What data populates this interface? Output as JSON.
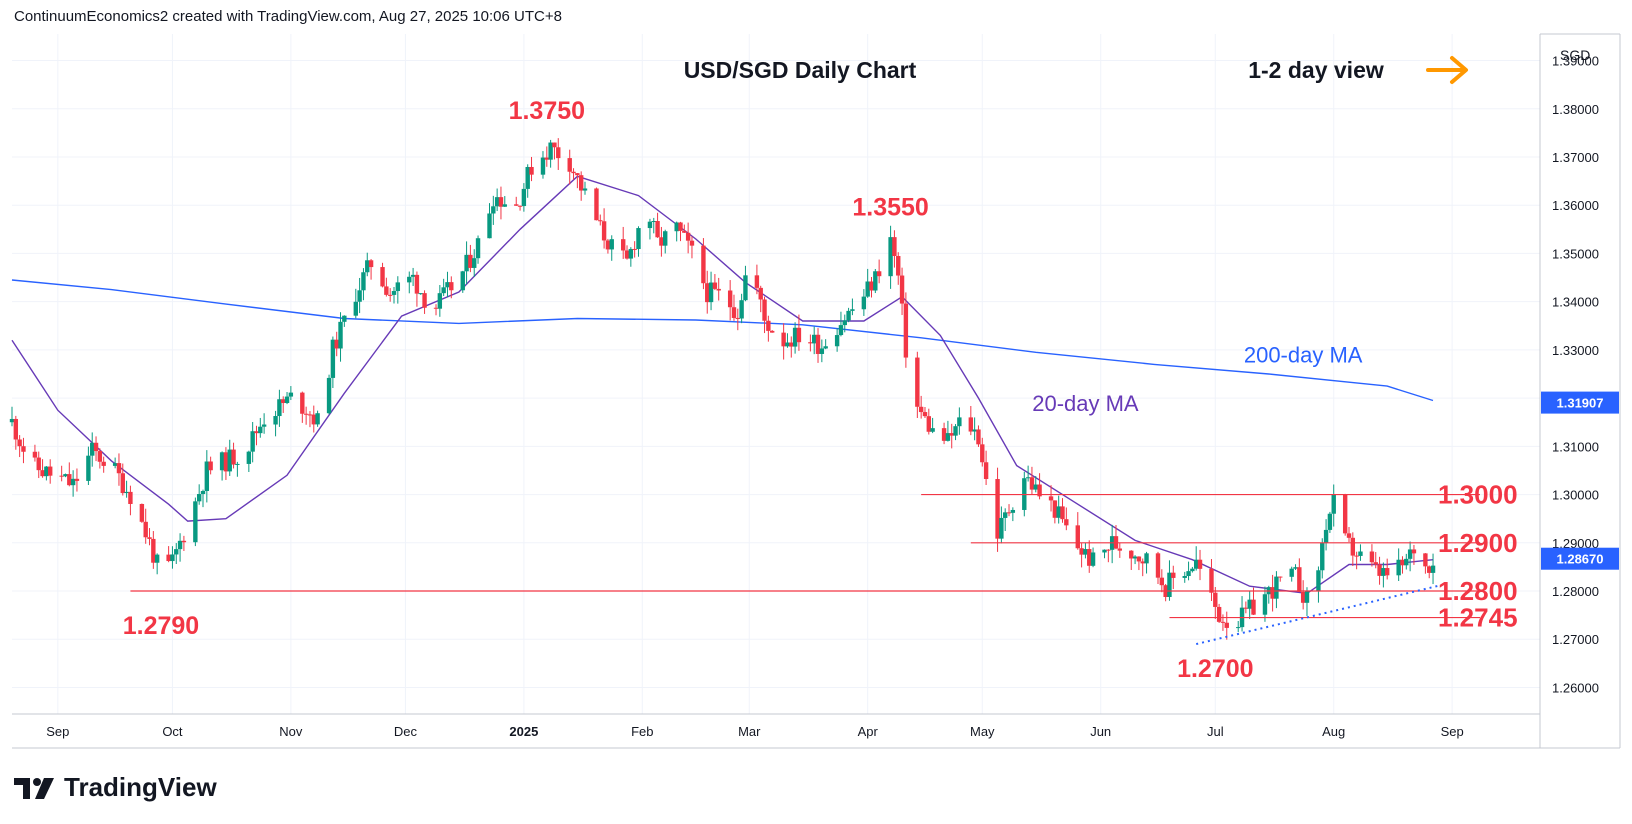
{
  "header": {
    "credit": "ContinuumEconomics2 created with TradingView.com, Aug 27, 2025 10:06 UTC+8"
  },
  "brand": {
    "name": "TradingView"
  },
  "chart_data": {
    "type": "candlestick",
    "title": "USD/SGD Daily Chart",
    "view_label": "1-2 day view",
    "view_arrow": "right-arrow-icon",
    "currency": "SGD",
    "y_axis": {
      "range": [
        1.2545,
        1.3955
      ],
      "ticks": [
        "1.39000",
        "1.38000",
        "1.37000",
        "1.36000",
        "1.35000",
        "1.34000",
        "1.33000",
        "1.32000",
        "1.31000",
        "1.30000",
        "1.29000",
        "1.28000",
        "1.27000",
        "1.26000"
      ],
      "tick_values": [
        1.39,
        1.38,
        1.37,
        1.36,
        1.35,
        1.34,
        1.33,
        1.32,
        1.31,
        1.3,
        1.29,
        1.28,
        1.27,
        1.26
      ]
    },
    "x_axis": {
      "range": [
        "2024-08-20",
        "2025-09-24"
      ],
      "labels": [
        {
          "text": "Sep",
          "date": "2024-09-01",
          "bold": false
        },
        {
          "text": "Oct",
          "date": "2024-10-01",
          "bold": false
        },
        {
          "text": "Nov",
          "date": "2024-11-01",
          "bold": false
        },
        {
          "text": "Dec",
          "date": "2024-12-01",
          "bold": false
        },
        {
          "text": "2025",
          "date": "2025-01-01",
          "bold": true
        },
        {
          "text": "Feb",
          "date": "2025-02-01",
          "bold": false
        },
        {
          "text": "Mar",
          "date": "2025-03-01",
          "bold": false
        },
        {
          "text": "Apr",
          "date": "2025-04-01",
          "bold": false
        },
        {
          "text": "May",
          "date": "2025-05-01",
          "bold": false
        },
        {
          "text": "Jun",
          "date": "2025-06-01",
          "bold": false
        },
        {
          "text": "Jul",
          "date": "2025-07-01",
          "bold": false
        },
        {
          "text": "Aug",
          "date": "2025-08-01",
          "bold": false
        },
        {
          "text": "Sep",
          "date": "2025-09-01",
          "bold": false
        }
      ]
    },
    "price_path": [
      [
        "2024-08-20",
        1.315
      ],
      [
        "2024-08-25",
        1.306
      ],
      [
        "2024-09-05",
        1.302
      ],
      [
        "2024-09-10",
        1.309
      ],
      [
        "2024-09-15",
        1.306
      ],
      [
        "2024-09-20",
        1.3
      ],
      [
        "2024-09-25",
        1.29
      ],
      [
        "2024-09-28",
        1.283
      ],
      [
        "2024-10-01",
        1.286
      ],
      [
        "2024-10-05",
        1.294
      ],
      [
        "2024-10-10",
        1.305
      ],
      [
        "2024-10-20",
        1.309
      ],
      [
        "2024-10-25",
        1.316
      ],
      [
        "2024-11-01",
        1.32
      ],
      [
        "2024-11-05",
        1.318
      ],
      [
        "2024-11-08",
        1.315
      ],
      [
        "2024-11-12",
        1.33
      ],
      [
        "2024-11-18",
        1.342
      ],
      [
        "2024-11-22",
        1.348
      ],
      [
        "2024-11-27",
        1.342
      ],
      [
        "2024-12-03",
        1.345
      ],
      [
        "2024-12-08",
        1.338
      ],
      [
        "2024-12-12",
        1.342
      ],
      [
        "2024-12-16",
        1.346
      ],
      [
        "2024-12-20",
        1.352
      ],
      [
        "2024-12-24",
        1.362
      ],
      [
        "2024-12-30",
        1.36
      ],
      [
        "2025-01-03",
        1.368
      ],
      [
        "2025-01-08",
        1.372
      ],
      [
        "2025-01-13",
        1.369
      ],
      [
        "2025-01-17",
        1.362
      ],
      [
        "2025-01-21",
        1.355
      ],
      [
        "2025-01-25",
        1.35
      ],
      [
        "2025-01-28",
        1.348
      ],
      [
        "2025-02-02",
        1.36
      ],
      [
        "2025-02-05",
        1.352
      ],
      [
        "2025-02-10",
        1.355
      ],
      [
        "2025-02-14",
        1.35
      ],
      [
        "2025-02-18",
        1.342
      ],
      [
        "2025-02-22",
        1.341
      ],
      [
        "2025-02-26",
        1.338
      ],
      [
        "2025-03-01",
        1.349
      ],
      [
        "2025-03-05",
        1.336
      ],
      [
        "2025-03-10",
        1.332
      ],
      [
        "2025-03-14",
        1.333
      ],
      [
        "2025-03-20",
        1.331
      ],
      [
        "2025-03-25",
        1.336
      ],
      [
        "2025-03-30",
        1.34
      ],
      [
        "2025-04-03",
        1.345
      ],
      [
        "2025-04-07",
        1.353
      ],
      [
        "2025-04-09",
        1.345
      ],
      [
        "2025-04-11",
        1.33
      ],
      [
        "2025-04-14",
        1.318
      ],
      [
        "2025-04-18",
        1.313
      ],
      [
        "2025-04-22",
        1.311
      ],
      [
        "2025-04-26",
        1.316
      ],
      [
        "2025-04-30",
        1.312
      ],
      [
        "2025-05-02",
        1.303
      ],
      [
        "2025-05-05",
        1.292
      ],
      [
        "2025-05-08",
        1.297
      ],
      [
        "2025-05-12",
        1.304
      ],
      [
        "2025-05-16",
        1.3
      ],
      [
        "2025-05-20",
        1.297
      ],
      [
        "2025-05-25",
        1.29
      ],
      [
        "2025-05-30",
        1.286
      ],
      [
        "2025-06-04",
        1.29
      ],
      [
        "2025-06-10",
        1.288
      ],
      [
        "2025-06-14",
        1.286
      ],
      [
        "2025-06-18",
        1.281
      ],
      [
        "2025-06-22",
        1.284
      ],
      [
        "2025-06-26",
        1.286
      ],
      [
        "2025-06-29",
        1.28
      ],
      [
        "2025-07-02",
        1.275
      ],
      [
        "2025-07-06",
        1.273
      ],
      [
        "2025-07-10",
        1.276
      ],
      [
        "2025-07-14",
        1.279
      ],
      [
        "2025-07-18",
        1.282
      ],
      [
        "2025-07-22",
        1.283
      ],
      [
        "2025-07-25",
        1.278
      ],
      [
        "2025-07-28",
        1.285
      ],
      [
        "2025-07-30",
        1.294
      ],
      [
        "2025-08-01",
        1.298
      ],
      [
        "2025-08-04",
        1.29
      ],
      [
        "2025-08-08",
        1.287
      ],
      [
        "2025-08-12",
        1.284
      ],
      [
        "2025-08-16",
        1.283
      ],
      [
        "2025-08-20",
        1.286
      ],
      [
        "2025-08-22",
        1.289
      ],
      [
        "2025-08-25",
        1.285
      ],
      [
        "2025-08-27",
        1.2867
      ]
    ],
    "series": [
      {
        "name": "200-day MA",
        "type": "line",
        "color": "#2962ff",
        "points": [
          [
            "2024-08-20",
            1.3445
          ],
          [
            "2024-09-15",
            1.3425
          ],
          [
            "2024-10-15",
            1.3395
          ],
          [
            "2024-11-15",
            1.3365
          ],
          [
            "2024-12-15",
            1.3355
          ],
          [
            "2025-01-15",
            1.3365
          ],
          [
            "2025-02-15",
            1.3362
          ],
          [
            "2025-03-15",
            1.3352
          ],
          [
            "2025-04-15",
            1.3325
          ],
          [
            "2025-05-15",
            1.3295
          ],
          [
            "2025-06-15",
            1.327
          ],
          [
            "2025-07-15",
            1.325
          ],
          [
            "2025-08-15",
            1.3225
          ],
          [
            "2025-08-27",
            1.3195
          ]
        ]
      },
      {
        "name": "20-day MA",
        "type": "line",
        "color": "#673ab7",
        "points": [
          [
            "2024-08-20",
            1.332
          ],
          [
            "2024-09-01",
            1.3175
          ],
          [
            "2024-09-15",
            1.307
          ],
          [
            "2024-09-30",
            1.298
          ],
          [
            "2024-10-05",
            1.2945
          ],
          [
            "2024-10-15",
            1.295
          ],
          [
            "2024-10-31",
            1.304
          ],
          [
            "2024-11-15",
            1.321
          ],
          [
            "2024-11-30",
            1.337
          ],
          [
            "2024-12-15",
            1.342
          ],
          [
            "2024-12-31",
            1.355
          ],
          [
            "2025-01-15",
            1.366
          ],
          [
            "2025-01-31",
            1.362
          ],
          [
            "2025-02-15",
            1.353
          ],
          [
            "2025-02-28",
            1.344
          ],
          [
            "2025-03-15",
            1.336
          ],
          [
            "2025-03-31",
            1.336
          ],
          [
            "2025-04-10",
            1.341
          ],
          [
            "2025-04-20",
            1.333
          ],
          [
            "2025-04-30",
            1.32
          ],
          [
            "2025-05-10",
            1.306
          ],
          [
            "2025-05-25",
            1.2985
          ],
          [
            "2025-06-10",
            1.2905
          ],
          [
            "2025-06-25",
            1.2865
          ],
          [
            "2025-07-10",
            1.281
          ],
          [
            "2025-07-25",
            1.2795
          ],
          [
            "2025-08-05",
            1.2855
          ],
          [
            "2025-08-15",
            1.2855
          ],
          [
            "2025-08-27",
            1.2865
          ]
        ]
      }
    ],
    "horizontal_levels": [
      {
        "value": 1.3,
        "label": "1.3000",
        "from": "2025-04-15"
      },
      {
        "value": 1.29,
        "label": "1.2900",
        "from": "2025-04-28"
      },
      {
        "value": 1.28,
        "label": "1.2800",
        "from": "2024-09-20"
      },
      {
        "value": 1.2745,
        "label": "1.2745",
        "from": "2025-06-19"
      }
    ],
    "trendline": {
      "from": [
        "2025-06-26",
        1.269
      ],
      "to": [
        "2025-08-29",
        1.2812
      ],
      "style": "dotted",
      "color": "#2962ff"
    },
    "annotations": [
      {
        "text": "1.3750",
        "date": "2025-01-07",
        "value": 1.375,
        "position": "above"
      },
      {
        "text": "1.3550",
        "date": "2025-04-07",
        "value": 1.355,
        "position": "above"
      },
      {
        "text": "1.2790",
        "date": "2024-09-28",
        "value": 1.279,
        "position": "below"
      },
      {
        "text": "1.2700",
        "date": "2025-07-01",
        "value": 1.27,
        "position": "below"
      },
      {
        "text": "200-day MA",
        "date": "2025-07-24",
        "value": 1.329,
        "color": "#2962ff"
      },
      {
        "text": "20-day MA",
        "date": "2025-05-28",
        "value": 1.319,
        "color": "#673ab7"
      }
    ],
    "price_badges": [
      {
        "text": "1.31907",
        "value": 1.31907,
        "color": "#2962ff"
      },
      {
        "text": "1.28670",
        "value": 1.2867,
        "color": "#2962ff"
      }
    ],
    "colors": {
      "up": "#089981",
      "down": "#f23645",
      "level_line": "#f23645",
      "level_label": "#f23645",
      "arrow": "#ff9800"
    },
    "grid": true,
    "legend": "none"
  }
}
